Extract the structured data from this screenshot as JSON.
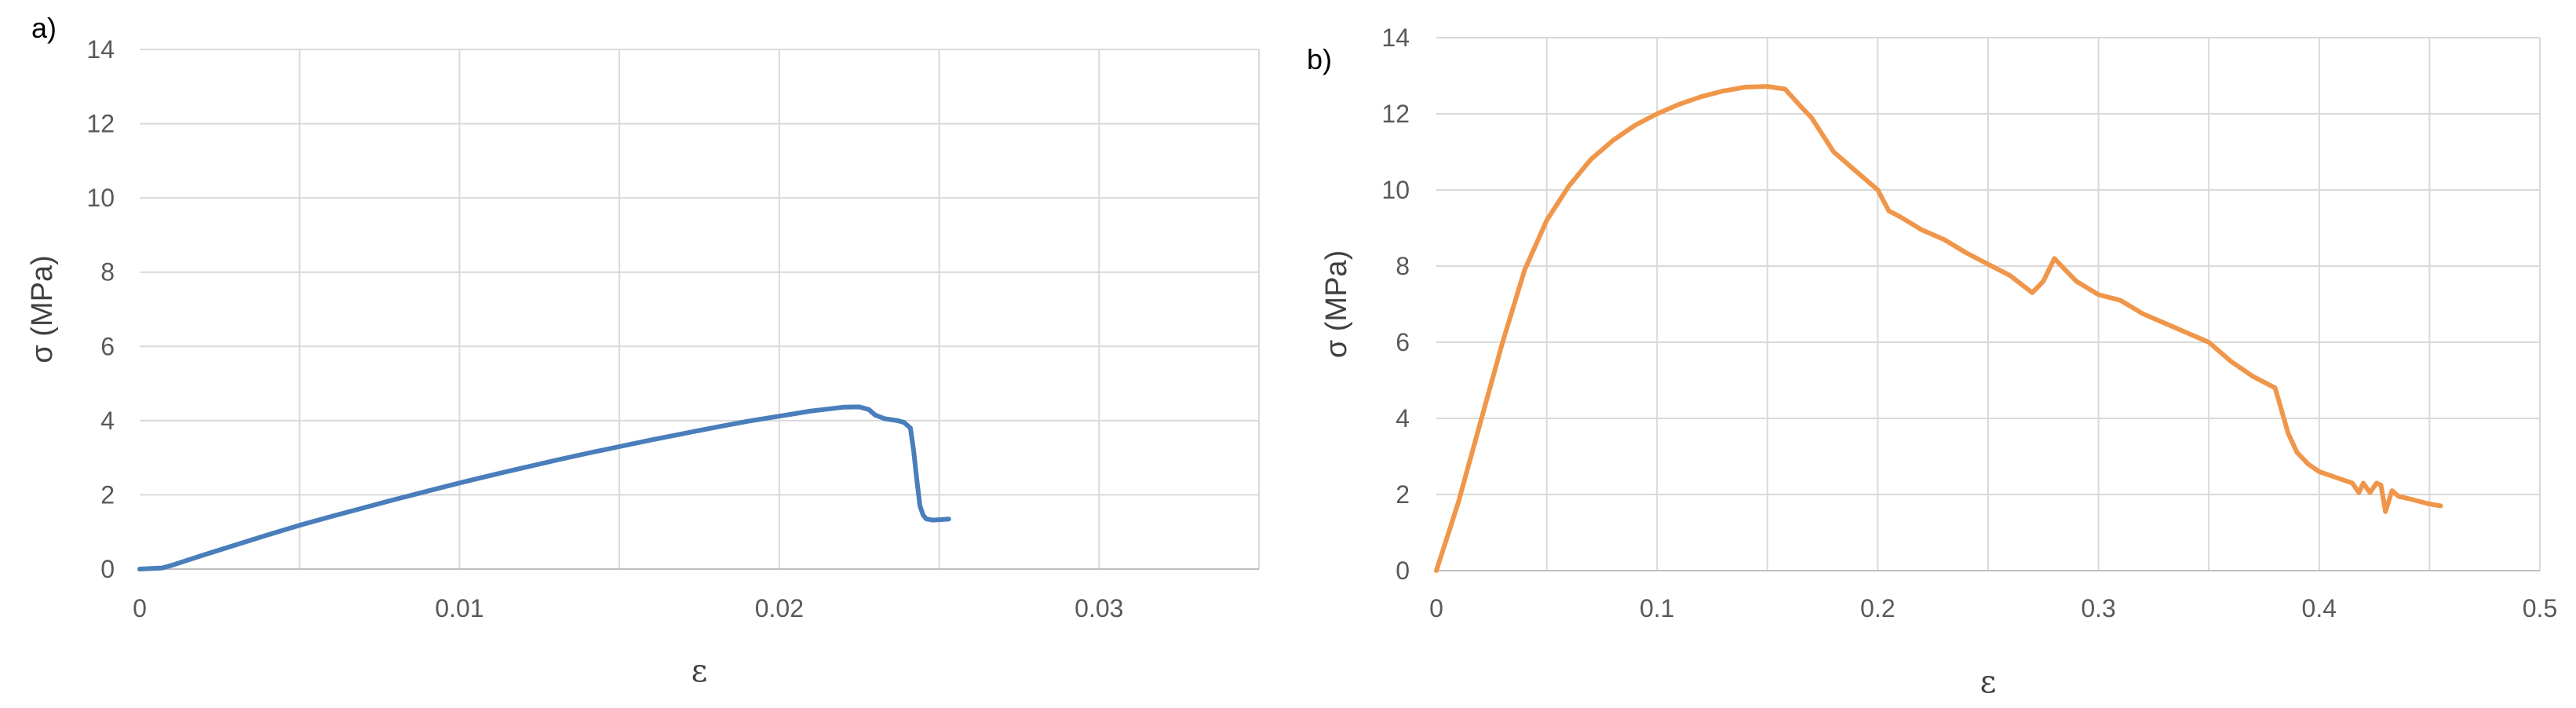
{
  "chart_data": [
    {
      "type": "line",
      "panel_label": "a)",
      "xlabel": "ε",
      "ylabel": "σ (MPa)",
      "xlim": [
        0,
        0.035
      ],
      "ylim": [
        0,
        14
      ],
      "xticks": [
        0,
        0.01,
        0.02,
        0.03
      ],
      "xtick_labels": [
        "0",
        "0.01",
        "0.02",
        "0.03"
      ],
      "yticks": [
        0,
        2,
        4,
        6,
        8,
        10,
        12,
        14
      ],
      "ytick_labels": [
        "0",
        "2",
        "4",
        "6",
        "8",
        "10",
        "12",
        "14"
      ],
      "vgrid": [
        0,
        0.005,
        0.01,
        0.015,
        0.02,
        0.025,
        0.03,
        0.035
      ],
      "grid": true,
      "color": "#4a7ebb",
      "series": [
        {
          "x": [
            0,
            0.0007,
            0.001,
            0.002,
            0.003,
            0.004,
            0.005,
            0.006,
            0.007,
            0.008,
            0.009,
            0.01,
            0.011,
            0.012,
            0.013,
            0.014,
            0.015,
            0.016,
            0.017,
            0.018,
            0.019,
            0.02,
            0.021,
            0.0215,
            0.022,
            0.0225,
            0.0228,
            0.023,
            0.0233,
            0.0237,
            0.0239,
            0.0241,
            0.0242,
            0.0243,
            0.0244,
            0.0245,
            0.0246,
            0.0248,
            0.025,
            0.0253
          ],
          "y": [
            0,
            0.03,
            0.1,
            0.38,
            0.65,
            0.92,
            1.18,
            1.42,
            1.65,
            1.88,
            2.1,
            2.32,
            2.53,
            2.73,
            2.93,
            3.12,
            3.3,
            3.48,
            3.65,
            3.82,
            3.98,
            4.12,
            4.26,
            4.31,
            4.36,
            4.37,
            4.3,
            4.15,
            4.05,
            4.0,
            3.95,
            3.8,
            3.2,
            2.4,
            1.7,
            1.45,
            1.35,
            1.32,
            1.33,
            1.35
          ]
        }
      ]
    },
    {
      "type": "line",
      "panel_label": "b)",
      "xlabel": "ε",
      "ylabel": "σ (MPa)",
      "xlim": [
        0,
        0.5
      ],
      "ylim": [
        0,
        14
      ],
      "xticks": [
        0,
        0.1,
        0.2,
        0.3,
        0.4,
        0.5
      ],
      "xtick_labels": [
        "0",
        "0.1",
        "0.2",
        "0.3",
        "0.4",
        "0.5"
      ],
      "yticks": [
        0,
        2,
        4,
        6,
        8,
        10,
        12,
        14
      ],
      "ytick_labels": [
        "0",
        "2",
        "4",
        "6",
        "8",
        "10",
        "12",
        "14"
      ],
      "vgrid": [
        0,
        0.05,
        0.1,
        0.15,
        0.2,
        0.25,
        0.3,
        0.35,
        0.4,
        0.45,
        0.5
      ],
      "grid": true,
      "color": "#f0964a",
      "series": [
        {
          "x": [
            0,
            0.005,
            0.01,
            0.02,
            0.03,
            0.04,
            0.05,
            0.06,
            0.07,
            0.08,
            0.09,
            0.1,
            0.11,
            0.12,
            0.13,
            0.14,
            0.15,
            0.158,
            0.165,
            0.17,
            0.175,
            0.18,
            0.185,
            0.19,
            0.2,
            0.205,
            0.21,
            0.22,
            0.23,
            0.24,
            0.25,
            0.26,
            0.27,
            0.275,
            0.28,
            0.285,
            0.29,
            0.3,
            0.31,
            0.32,
            0.33,
            0.34,
            0.35,
            0.36,
            0.37,
            0.38,
            0.383,
            0.386,
            0.39,
            0.395,
            0.4,
            0.41,
            0.415,
            0.418,
            0.42,
            0.423,
            0.426,
            0.428,
            0.43,
            0.433,
            0.436,
            0.44,
            0.45,
            0.455
          ],
          "y": [
            0,
            0.9,
            1.8,
            3.9,
            6.0,
            7.9,
            9.2,
            10.1,
            10.8,
            11.3,
            11.7,
            12.0,
            12.25,
            12.45,
            12.6,
            12.7,
            12.72,
            12.65,
            12.2,
            11.9,
            11.45,
            11.0,
            10.75,
            10.5,
            10.0,
            9.45,
            9.3,
            8.95,
            8.7,
            8.35,
            8.05,
            7.75,
            7.3,
            7.6,
            8.2,
            7.9,
            7.6,
            7.25,
            7.1,
            6.75,
            6.5,
            6.25,
            6.0,
            5.5,
            5.1,
            4.8,
            4.2,
            3.6,
            3.1,
            2.8,
            2.6,
            2.4,
            2.3,
            2.05,
            2.3,
            2.05,
            2.3,
            2.25,
            1.55,
            2.1,
            1.95,
            1.9,
            1.75,
            1.7
          ]
        }
      ]
    }
  ]
}
